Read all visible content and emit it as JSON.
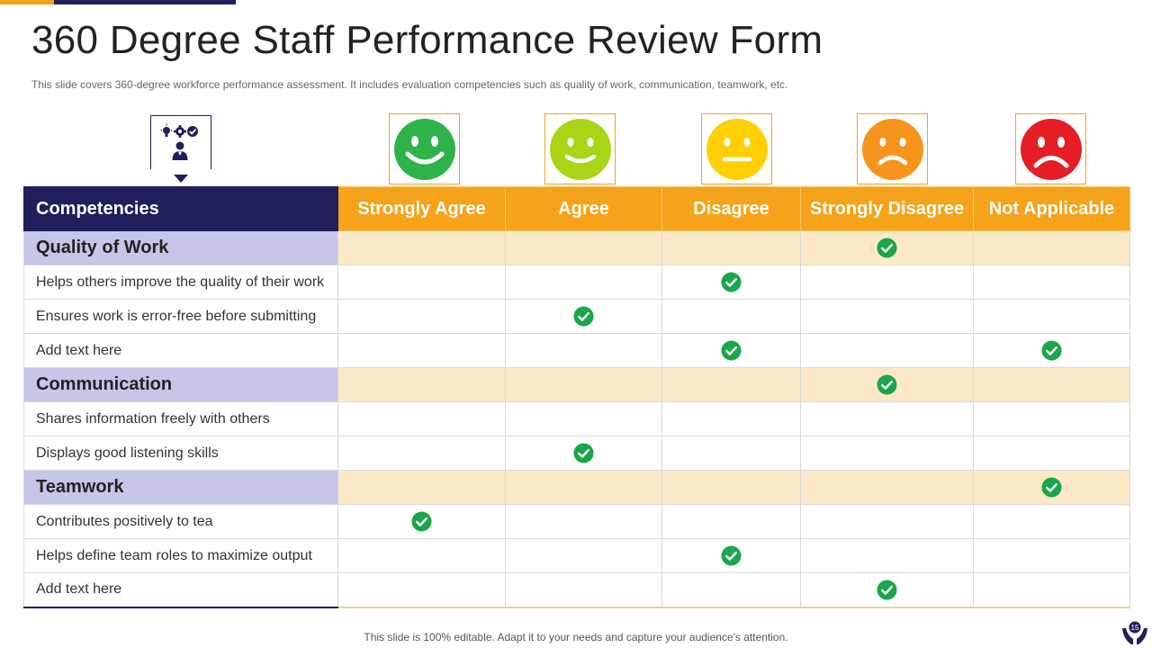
{
  "header": {
    "title": "360 Degree Staff Performance Review Form",
    "subtitle": "This slide covers 360-degree workforce performance assessment. It includes evaluation competencies such as quality of work, communication, teamwork, etc."
  },
  "colors": {
    "navy": "#1f1f5c",
    "orange": "#f5a31a",
    "group_row": "#fbe9c7",
    "group_label": "#c5c6e8",
    "check_green": "#1aa64a"
  },
  "faces": [
    {
      "icon": "very-happy-face-icon",
      "color": "#2db34a"
    },
    {
      "icon": "happy-face-icon",
      "color": "#a8d515"
    },
    {
      "icon": "neutral-face-icon",
      "color": "#ffd000"
    },
    {
      "icon": "sad-face-icon",
      "color": "#f7941d"
    },
    {
      "icon": "very-sad-face-icon",
      "color": "#e51d25"
    }
  ],
  "table": {
    "headers": [
      "Competencies",
      "Strongly Agree",
      "Agree",
      "Disagree",
      "Strongly Disagree",
      "Not Applicable"
    ],
    "rows": [
      {
        "label": "Quality of Work",
        "group": true,
        "checks": [
          false,
          false,
          false,
          true,
          false
        ]
      },
      {
        "label": "Helps others improve the quality of their work",
        "group": false,
        "checks": [
          false,
          false,
          true,
          false,
          false
        ]
      },
      {
        "label": "Ensures work is error-free before submitting",
        "group": false,
        "checks": [
          false,
          true,
          false,
          false,
          false
        ]
      },
      {
        "label": "Add text here",
        "group": false,
        "checks": [
          false,
          false,
          true,
          false,
          true
        ]
      },
      {
        "label": "Communication",
        "group": true,
        "checks": [
          false,
          false,
          false,
          true,
          false
        ]
      },
      {
        "label": "Shares information freely with others",
        "group": false,
        "checks": [
          false,
          false,
          false,
          false,
          false
        ]
      },
      {
        "label": "Displays good listening skills",
        "group": false,
        "checks": [
          false,
          true,
          false,
          false,
          false
        ]
      },
      {
        "label": "Teamwork",
        "group": true,
        "checks": [
          false,
          false,
          false,
          false,
          true
        ]
      },
      {
        "label": "Contributes positively to tea",
        "group": false,
        "checks": [
          true,
          false,
          false,
          false,
          false
        ]
      },
      {
        "label": "Helps define team roles to maximize output",
        "group": false,
        "checks": [
          false,
          false,
          true,
          false,
          false
        ]
      },
      {
        "label": "Add text here",
        "group": false,
        "checks": [
          false,
          false,
          false,
          true,
          false
        ]
      }
    ]
  },
  "footer": {
    "text": "This slide is 100% editable. Adapt it to your needs and capture your audience's attention.",
    "page_number": "15"
  }
}
